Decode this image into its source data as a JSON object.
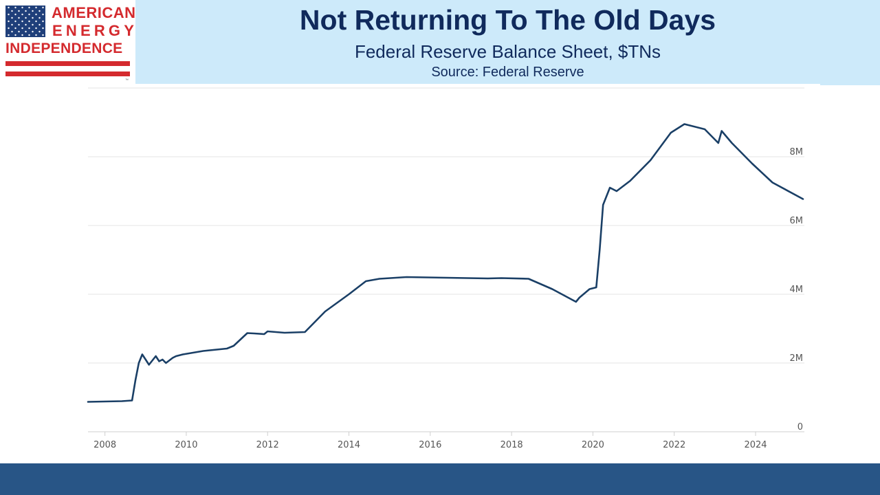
{
  "header": {
    "title": "Not Returning To The Old Days",
    "subtitle": "Federal Reserve Balance Sheet, $TNs",
    "source": "Source: Federal Reserve"
  },
  "logo": {
    "line1": "AMERICAN",
    "line2": "ENERGY",
    "line3": "INDEPENDENCE",
    "tm": "™",
    "colors": {
      "red": "#d42a2e",
      "blue": "#1f3f7a"
    }
  },
  "colors": {
    "line": "#1a3f66",
    "header_band": "#cdeafa",
    "footer": "#285586",
    "title": "#102a5c"
  },
  "chart_data": {
    "type": "line",
    "title": "Not Returning To The Old Days",
    "subtitle": "Federal Reserve Balance Sheet, $TNs",
    "xlabel": "",
    "ylabel": "",
    "ylim": [
      0,
      10
    ],
    "xlim": [
      "2007-08",
      "2025-03"
    ],
    "y_ticks": [
      {
        "value": 0,
        "label": "0"
      },
      {
        "value": 2,
        "label": "2M"
      },
      {
        "value": 4,
        "label": "4M"
      },
      {
        "value": 6,
        "label": "6M"
      },
      {
        "value": 8,
        "label": "8M"
      }
    ],
    "x_ticks": [
      {
        "value": 2008,
        "label": "2008"
      },
      {
        "value": 2010,
        "label": "2010"
      },
      {
        "value": 2012,
        "label": "2012"
      },
      {
        "value": 2014,
        "label": "2014"
      },
      {
        "value": 2016,
        "label": "2016"
      },
      {
        "value": 2018,
        "label": "2018"
      },
      {
        "value": 2020,
        "label": "2020"
      },
      {
        "value": 2022,
        "label": "2022"
      },
      {
        "value": 2024,
        "label": "2024"
      }
    ],
    "grid": true,
    "series": [
      {
        "x": [
          "2007-08",
          "2008-01",
          "2008-06",
          "2008-09",
          "2008-10",
          "2008-11",
          "2008-12",
          "2009-01",
          "2009-02",
          "2009-04",
          "2009-05",
          "2009-06",
          "2009-07",
          "2009-09",
          "2009-10",
          "2009-12",
          "2010-06",
          "2011-01",
          "2011-03",
          "2011-07",
          "2011-09",
          "2011-12",
          "2012-01",
          "2012-06",
          "2012-12",
          "2013-06",
          "2014-01",
          "2014-06",
          "2014-10",
          "2015-06",
          "2016-06",
          "2017-06",
          "2017-10",
          "2018-06",
          "2019-01",
          "2019-08",
          "2019-09",
          "2019-12",
          "2020-02",
          "2020-03",
          "2020-04",
          "2020-06",
          "2020-08",
          "2020-12",
          "2021-06",
          "2021-12",
          "2022-04",
          "2022-10",
          "2023-02",
          "2023-03",
          "2023-06",
          "2023-12",
          "2024-06",
          "2025-03"
        ],
        "y": [
          0.87,
          0.88,
          0.89,
          0.91,
          1.5,
          2.0,
          2.25,
          2.1,
          1.95,
          2.2,
          2.05,
          2.1,
          2.0,
          2.15,
          2.2,
          2.25,
          2.35,
          2.42,
          2.5,
          2.87,
          2.86,
          2.84,
          2.92,
          2.88,
          2.9,
          3.5,
          4.0,
          4.38,
          4.45,
          4.5,
          4.48,
          4.46,
          4.47,
          4.45,
          4.15,
          3.78,
          3.9,
          4.15,
          4.2,
          5.3,
          6.6,
          7.1,
          7.0,
          7.3,
          7.9,
          8.7,
          8.95,
          8.8,
          8.4,
          8.75,
          8.4,
          7.8,
          7.25,
          6.77
        ]
      }
    ]
  }
}
